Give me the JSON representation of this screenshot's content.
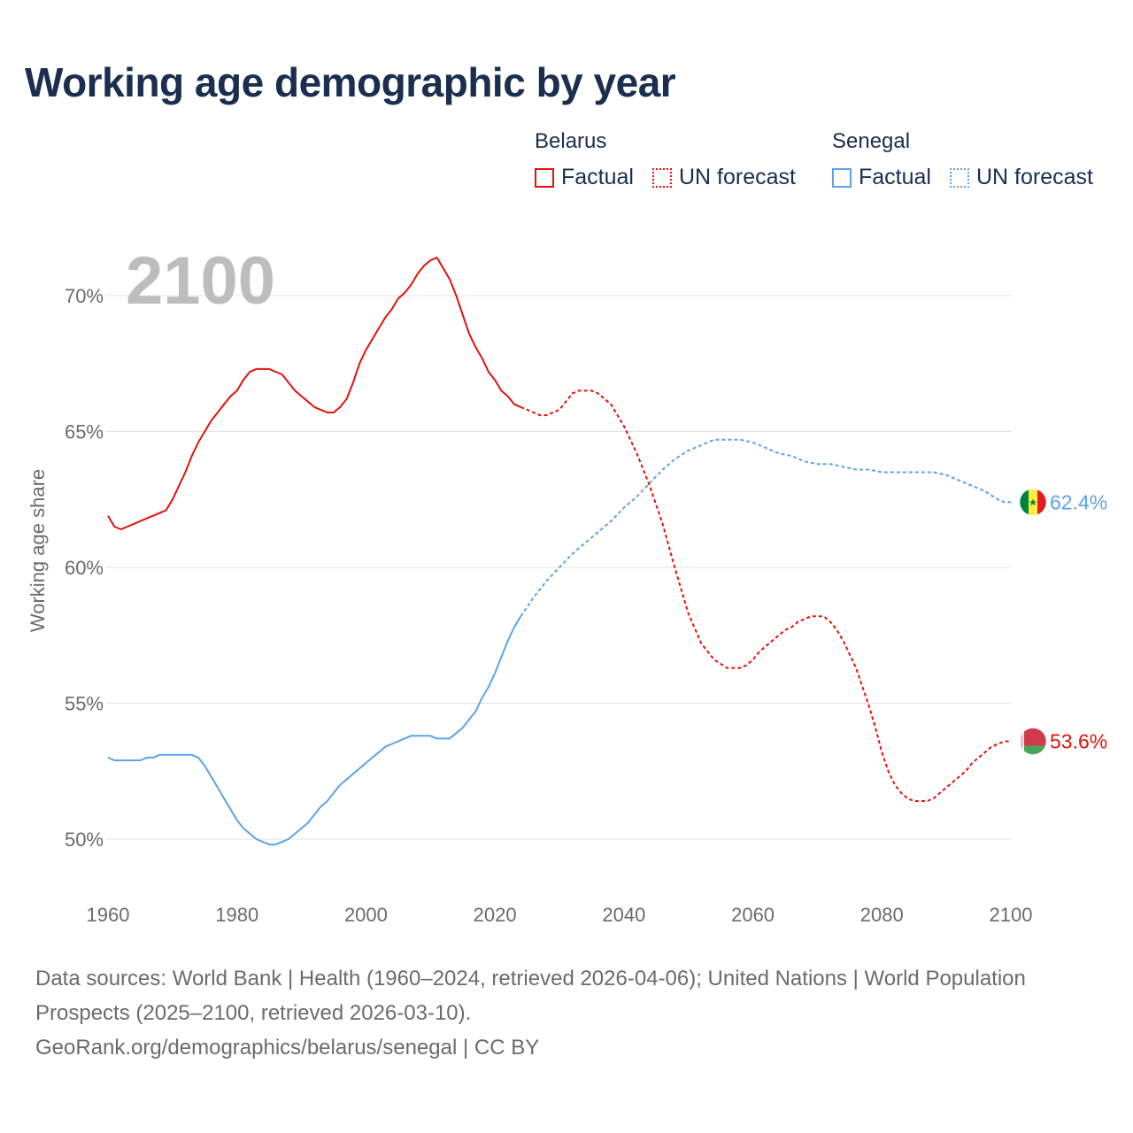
{
  "title": "Working age demographic by year",
  "legend": {
    "groups": [
      {
        "country": "Belarus",
        "factual_label": "Factual",
        "forecast_label": "UN forecast",
        "color": "#e3120b"
      },
      {
        "country": "Senegal",
        "factual_label": "Factual",
        "forecast_label": "UN forecast",
        "color": "#5ca4e6"
      }
    ]
  },
  "footer": {
    "sources": "Data sources: World Bank | Health (1960–2024, retrieved 2026-04-06); United Nations | World Population Prospects (2025–2100, retrieved 2026-03-10).",
    "attribution": "GeoRank.org/demographics/belarus/senegal | CC BY"
  },
  "chart_data": {
    "type": "line",
    "ylabel": "Working age share",
    "year_watermark": "2100",
    "xlim": [
      1960,
      2100
    ],
    "ylim": [
      47.5,
      72
    ],
    "x_ticks": [
      1960,
      1980,
      2000,
      2020,
      2040,
      2060,
      2080,
      2100
    ],
    "x_tick_labels": [
      "1960",
      "1980",
      "2000",
      "2020",
      "2040",
      "2060",
      "2080",
      "2100"
    ],
    "y_ticks": [
      50,
      55,
      60,
      65,
      70
    ],
    "y_tick_labels": [
      "50%",
      "55%",
      "60%",
      "65%",
      "70%"
    ],
    "series": [
      {
        "name": "Belarus",
        "color": "#e3120b",
        "end_label": "53.6%",
        "factual": {
          "x": [
            1960,
            1961,
            1962,
            1964,
            1966,
            1968,
            1969,
            1970,
            1971,
            1972,
            1973,
            1974,
            1975,
            1976,
            1977,
            1978,
            1979,
            1980,
            1981,
            1982,
            1983,
            1984,
            1985,
            1986,
            1987,
            1988,
            1989,
            1990,
            1991,
            1992,
            1993,
            1994,
            1995,
            1996,
            1997,
            1998,
            1999,
            2000,
            2001,
            2002,
            2003,
            2004,
            2005,
            2006,
            2007,
            2008,
            2009,
            2010,
            2011,
            2012,
            2013,
            2014,
            2015,
            2016,
            2017,
            2018,
            2019,
            2020,
            2021,
            2022,
            2023,
            2024
          ],
          "y": [
            61.9,
            61.5,
            61.4,
            61.6,
            61.8,
            62.0,
            62.1,
            62.5,
            63.0,
            63.5,
            64.1,
            64.6,
            65.0,
            65.4,
            65.7,
            66.0,
            66.3,
            66.5,
            66.9,
            67.2,
            67.3,
            67.3,
            67.3,
            67.2,
            67.1,
            66.8,
            66.5,
            66.3,
            66.1,
            65.9,
            65.8,
            65.7,
            65.7,
            65.9,
            66.2,
            66.8,
            67.5,
            68.0,
            68.4,
            68.8,
            69.2,
            69.5,
            69.9,
            70.1,
            70.4,
            70.8,
            71.1,
            71.3,
            71.4,
            71.0,
            70.6,
            70.0,
            69.3,
            68.6,
            68.1,
            67.7,
            67.2,
            66.9,
            66.5,
            66.3,
            66.0,
            65.9
          ]
        },
        "forecast": {
          "x": [
            2024,
            2025,
            2026,
            2027,
            2028,
            2029,
            2030,
            2031,
            2032,
            2033,
            2034,
            2035,
            2036,
            2037,
            2038,
            2039,
            2040,
            2042,
            2044,
            2046,
            2048,
            2050,
            2052,
            2054,
            2056,
            2058,
            2059,
            2060,
            2061,
            2062,
            2063,
            2064,
            2065,
            2066,
            2067,
            2068,
            2069,
            2070,
            2071,
            2072,
            2073,
            2074,
            2075,
            2076,
            2077,
            2078,
            2079,
            2080,
            2081,
            2082,
            2083,
            2084,
            2085,
            2086,
            2087,
            2088,
            2089,
            2090,
            2091,
            2092,
            2093,
            2094,
            2095,
            2096,
            2097,
            2098,
            2099,
            2100
          ],
          "y": [
            65.9,
            65.8,
            65.7,
            65.6,
            65.6,
            65.7,
            65.8,
            66.1,
            66.4,
            66.5,
            66.5,
            66.5,
            66.4,
            66.2,
            66.0,
            65.6,
            65.2,
            64.2,
            63.0,
            61.6,
            59.9,
            58.3,
            57.2,
            56.6,
            56.3,
            56.3,
            56.4,
            56.6,
            56.9,
            57.1,
            57.3,
            57.5,
            57.7,
            57.8,
            58.0,
            58.1,
            58.2,
            58.2,
            58.2,
            58.0,
            57.7,
            57.3,
            56.8,
            56.3,
            55.6,
            54.9,
            54.1,
            53.2,
            52.5,
            52.0,
            51.7,
            51.5,
            51.4,
            51.4,
            51.4,
            51.5,
            51.7,
            51.9,
            52.1,
            52.3,
            52.5,
            52.8,
            53.0,
            53.2,
            53.4,
            53.5,
            53.6,
            53.6
          ]
        }
      },
      {
        "name": "Senegal",
        "color": "#5ca4e6",
        "end_label": "62.4%",
        "factual": {
          "x": [
            1960,
            1961,
            1962,
            1964,
            1965,
            1966,
            1967,
            1968,
            1969,
            1970,
            1972,
            1973,
            1974,
            1975,
            1976,
            1977,
            1978,
            1979,
            1980,
            1981,
            1982,
            1983,
            1984,
            1985,
            1986,
            1987,
            1988,
            1989,
            1990,
            1991,
            1992,
            1993,
            1994,
            1995,
            1996,
            1997,
            1998,
            1999,
            2000,
            2001,
            2002,
            2003,
            2004,
            2005,
            2006,
            2007,
            2008,
            2009,
            2010,
            2011,
            2012,
            2013,
            2014,
            2015,
            2016,
            2017,
            2018,
            2019,
            2020,
            2021,
            2022,
            2023,
            2024
          ],
          "y": [
            53.0,
            52.9,
            52.9,
            52.9,
            52.9,
            53.0,
            53.0,
            53.1,
            53.1,
            53.1,
            53.1,
            53.1,
            53.0,
            52.7,
            52.3,
            51.9,
            51.5,
            51.1,
            50.7,
            50.4,
            50.2,
            50.0,
            49.9,
            49.8,
            49.8,
            49.9,
            50.0,
            50.2,
            50.4,
            50.6,
            50.9,
            51.2,
            51.4,
            51.7,
            52.0,
            52.2,
            52.4,
            52.6,
            52.8,
            53.0,
            53.2,
            53.4,
            53.5,
            53.6,
            53.7,
            53.8,
            53.8,
            53.8,
            53.8,
            53.7,
            53.7,
            53.7,
            53.9,
            54.1,
            54.4,
            54.7,
            55.2,
            55.6,
            56.1,
            56.7,
            57.3,
            57.8,
            58.2
          ]
        },
        "forecast": {
          "x": [
            2024,
            2026,
            2028,
            2030,
            2032,
            2034,
            2036,
            2038,
            2040,
            2042,
            2044,
            2046,
            2048,
            2050,
            2052,
            2054,
            2056,
            2058,
            2060,
            2062,
            2064,
            2066,
            2068,
            2070,
            2072,
            2074,
            2076,
            2078,
            2080,
            2082,
            2084,
            2086,
            2088,
            2090,
            2092,
            2094,
            2096,
            2098,
            2099,
            2100
          ],
          "y": [
            58.2,
            58.9,
            59.5,
            60.0,
            60.5,
            60.9,
            61.3,
            61.7,
            62.2,
            62.6,
            63.1,
            63.6,
            64.0,
            64.3,
            64.5,
            64.7,
            64.7,
            64.7,
            64.6,
            64.4,
            64.2,
            64.1,
            63.9,
            63.8,
            63.8,
            63.7,
            63.6,
            63.6,
            63.5,
            63.5,
            63.5,
            63.5,
            63.5,
            63.4,
            63.2,
            63.0,
            62.8,
            62.5,
            62.4,
            62.4
          ]
        }
      }
    ]
  }
}
